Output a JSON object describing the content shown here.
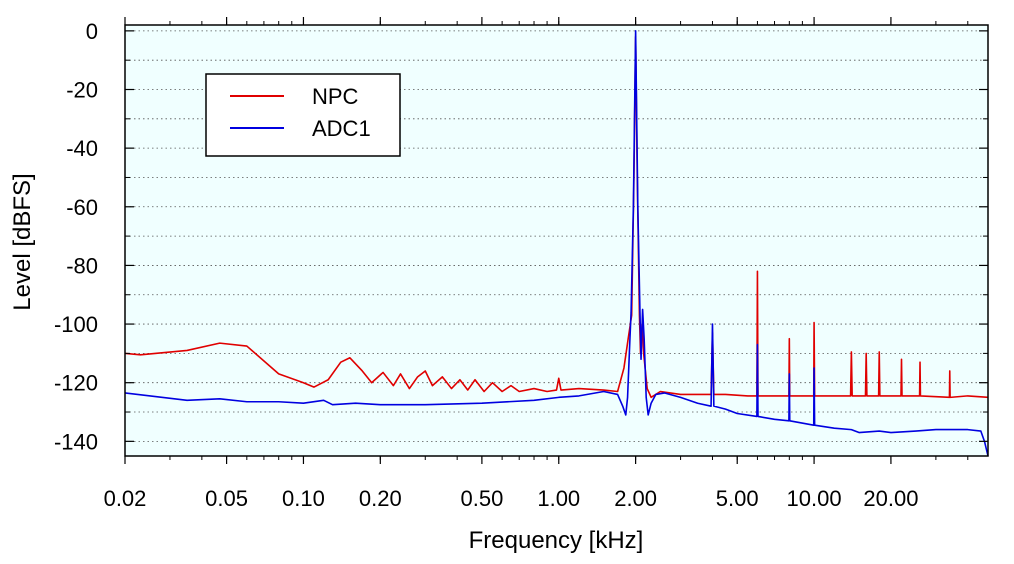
{
  "chart_data": {
    "type": "line",
    "title": "",
    "xlabel": "Frequency [kHz]",
    "ylabel": "Level [dBFS]",
    "x_scale": "log",
    "xlim": [
      0.02,
      48
    ],
    "ylim": [
      -145,
      2
    ],
    "grid": true,
    "background": "#f0ffff",
    "x_ticks": [
      {
        "value": 0.02,
        "label": "0.02"
      },
      {
        "value": 0.05,
        "label": "0.05"
      },
      {
        "value": 0.1,
        "label": "0.10"
      },
      {
        "value": 0.2,
        "label": "0.20"
      },
      {
        "value": 0.5,
        "label": "0.50"
      },
      {
        "value": 1,
        "label": "1.00"
      },
      {
        "value": 2,
        "label": "2.00"
      },
      {
        "value": 5,
        "label": "5.00"
      },
      {
        "value": 10,
        "label": "10.00"
      },
      {
        "value": 20,
        "label": "20.00"
      }
    ],
    "y_ticks": [
      {
        "value": 0,
        "label": "0"
      },
      {
        "value": -20,
        "label": "-20"
      },
      {
        "value": -40,
        "label": "-40"
      },
      {
        "value": -60,
        "label": "-60"
      },
      {
        "value": -80,
        "label": "-80"
      },
      {
        "value": -100,
        "label": "-100"
      },
      {
        "value": -120,
        "label": "-120"
      },
      {
        "value": -140,
        "label": "-140"
      }
    ],
    "legend": {
      "position": "top-left"
    },
    "series": [
      {
        "name": "NPC",
        "color": "#e00000",
        "points": [
          [
            0.02,
            -110
          ],
          [
            0.023,
            -110.5
          ],
          [
            0.035,
            -109
          ],
          [
            0.047,
            -106.5
          ],
          [
            0.06,
            -107.5
          ],
          [
            0.08,
            -117
          ],
          [
            0.1,
            -120
          ],
          [
            0.11,
            -121.5
          ],
          [
            0.125,
            -119
          ],
          [
            0.14,
            -113
          ],
          [
            0.152,
            -111.5
          ],
          [
            0.17,
            -116
          ],
          [
            0.185,
            -120
          ],
          [
            0.205,
            -116.5
          ],
          [
            0.225,
            -121
          ],
          [
            0.24,
            -117
          ],
          [
            0.26,
            -122
          ],
          [
            0.28,
            -118
          ],
          [
            0.3,
            -116
          ],
          [
            0.32,
            -121
          ],
          [
            0.35,
            -118
          ],
          [
            0.38,
            -122
          ],
          [
            0.41,
            -119
          ],
          [
            0.44,
            -122.5
          ],
          [
            0.47,
            -119
          ],
          [
            0.51,
            -123
          ],
          [
            0.55,
            -120
          ],
          [
            0.6,
            -123
          ],
          [
            0.65,
            -121
          ],
          [
            0.7,
            -123
          ],
          [
            0.8,
            -122
          ],
          [
            0.9,
            -123
          ],
          [
            0.98,
            -122.5
          ],
          [
            1.0,
            -118.5
          ],
          [
            1.02,
            -122.5
          ],
          [
            1.2,
            -122
          ],
          [
            1.5,
            -122.5
          ],
          [
            1.7,
            -123
          ],
          [
            1.8,
            -115
          ],
          [
            1.87,
            -105
          ],
          [
            1.9,
            -101
          ],
          [
            1.93,
            -97
          ],
          [
            1.97,
            -50
          ],
          [
            2.0,
            -2
          ],
          [
            2.03,
            -50
          ],
          [
            2.07,
            -97
          ],
          [
            2.09,
            -110
          ],
          [
            2.12,
            -100
          ],
          [
            2.15,
            -110
          ],
          [
            2.22,
            -122
          ],
          [
            2.3,
            -125
          ],
          [
            2.5,
            -123
          ],
          [
            3.0,
            -124
          ],
          [
            3.5,
            -124
          ],
          [
            3.95,
            -124
          ],
          [
            4.0,
            -103
          ],
          [
            4.05,
            -124
          ],
          [
            4.5,
            -124
          ],
          [
            5.5,
            -124.5
          ],
          [
            5.97,
            -124.5
          ],
          [
            6.0,
            -82
          ],
          [
            6.03,
            -124.5
          ],
          [
            7.0,
            -124.5
          ],
          [
            7.97,
            -124.5
          ],
          [
            8.0,
            -105
          ],
          [
            8.03,
            -124.5
          ],
          [
            9.0,
            -124.5
          ],
          [
            9.97,
            -124.5
          ],
          [
            10.0,
            -99.5
          ],
          [
            10.05,
            -124.5
          ],
          [
            13.9,
            -124.5
          ],
          [
            14.0,
            -109.5
          ],
          [
            14.1,
            -124.5
          ],
          [
            15.9,
            -124.5
          ],
          [
            16.0,
            -110
          ],
          [
            16.1,
            -124.5
          ],
          [
            17.9,
            -124.5
          ],
          [
            18.0,
            -109.5
          ],
          [
            18.1,
            -124.5
          ],
          [
            21.9,
            -124.5
          ],
          [
            22.0,
            -112
          ],
          [
            22.1,
            -124.5
          ],
          [
            25.9,
            -124.5
          ],
          [
            26.0,
            -113
          ],
          [
            26.1,
            -124.5
          ],
          [
            33.9,
            -125
          ],
          [
            34.0,
            -116
          ],
          [
            34.1,
            -125
          ],
          [
            40.0,
            -124.5
          ],
          [
            48.0,
            -125
          ]
        ]
      },
      {
        "name": "ADC1",
        "color": "#0000e0",
        "points": [
          [
            0.02,
            -123.5
          ],
          [
            0.035,
            -126
          ],
          [
            0.047,
            -125.5
          ],
          [
            0.06,
            -126.5
          ],
          [
            0.08,
            -126.5
          ],
          [
            0.1,
            -127
          ],
          [
            0.12,
            -126
          ],
          [
            0.13,
            -127.5
          ],
          [
            0.16,
            -127
          ],
          [
            0.2,
            -127.5
          ],
          [
            0.3,
            -127.5
          ],
          [
            0.5,
            -127
          ],
          [
            0.8,
            -126
          ],
          [
            1.0,
            -125
          ],
          [
            1.2,
            -124.5
          ],
          [
            1.5,
            -123
          ],
          [
            1.7,
            -124
          ],
          [
            1.78,
            -128
          ],
          [
            1.83,
            -131
          ],
          [
            1.86,
            -125
          ],
          [
            1.9,
            -105
          ],
          [
            1.92,
            -96
          ],
          [
            1.96,
            -60
          ],
          [
            2.0,
            0
          ],
          [
            2.04,
            -60
          ],
          [
            2.08,
            -96
          ],
          [
            2.1,
            -112
          ],
          [
            2.13,
            -95
          ],
          [
            2.16,
            -105
          ],
          [
            2.2,
            -125
          ],
          [
            2.24,
            -131
          ],
          [
            2.3,
            -127
          ],
          [
            2.4,
            -124
          ],
          [
            2.6,
            -123.5
          ],
          [
            3.0,
            -125
          ],
          [
            3.5,
            -127
          ],
          [
            3.95,
            -128
          ],
          [
            4.0,
            -100
          ],
          [
            4.05,
            -128
          ],
          [
            4.5,
            -129
          ],
          [
            5.0,
            -130.5
          ],
          [
            5.97,
            -131.5
          ],
          [
            6.0,
            -107
          ],
          [
            6.03,
            -131.5
          ],
          [
            7.0,
            -132.5
          ],
          [
            7.97,
            -133
          ],
          [
            8.0,
            -117
          ],
          [
            8.03,
            -133
          ],
          [
            9.97,
            -134.5
          ],
          [
            10.0,
            -115
          ],
          [
            10.05,
            -134.5
          ],
          [
            12.0,
            -135.5
          ],
          [
            14.0,
            -136
          ],
          [
            15.0,
            -137
          ],
          [
            18.0,
            -136.5
          ],
          [
            20.0,
            -137
          ],
          [
            25.0,
            -136.5
          ],
          [
            30.0,
            -136
          ],
          [
            35.0,
            -136
          ],
          [
            40.0,
            -136
          ],
          [
            45.0,
            -136.5
          ],
          [
            46.5,
            -140
          ],
          [
            48.0,
            -145
          ]
        ]
      }
    ]
  }
}
